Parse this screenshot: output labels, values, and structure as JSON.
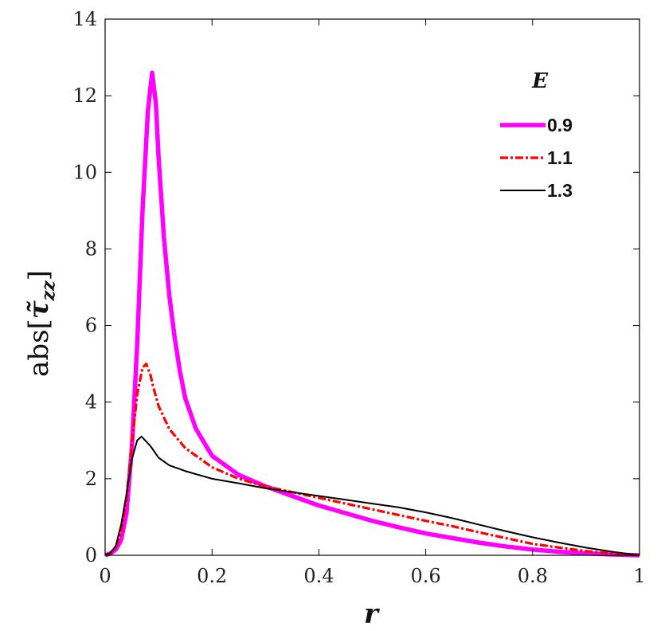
{
  "chart_data": {
    "type": "line",
    "xlabel": "r",
    "ylabel": "abs[τ̃zz]",
    "ylabel_parts": {
      "prefix": "abs[",
      "symbol": "τ̃",
      "subscript": "zz",
      "suffix": "]"
    },
    "xlim": [
      0,
      1
    ],
    "ylim": [
      0,
      14
    ],
    "x_ticks": [
      0,
      0.2,
      0.4,
      0.6,
      0.8,
      1
    ],
    "x_tick_labels": [
      "0",
      "0.2",
      "0.4",
      "0.6",
      "0.8",
      "1"
    ],
    "y_ticks": [
      0,
      2,
      4,
      6,
      8,
      10,
      12,
      14
    ],
    "y_tick_labels": [
      "0",
      "2",
      "4",
      "6",
      "8",
      "10",
      "12",
      "14"
    ],
    "grid": false,
    "legend": {
      "title": "E",
      "placement": "top-right"
    },
    "series": [
      {
        "name": "0.9",
        "color": "#ff00ff",
        "style": "solid-thick",
        "points": [
          [
            0,
            0
          ],
          [
            0.01,
            0.05
          ],
          [
            0.02,
            0.15
          ],
          [
            0.03,
            0.4
          ],
          [
            0.04,
            1.1
          ],
          [
            0.05,
            2.8
          ],
          [
            0.06,
            5.5
          ],
          [
            0.07,
            9.0
          ],
          [
            0.08,
            11.6
          ],
          [
            0.088,
            12.6
          ],
          [
            0.095,
            11.8
          ],
          [
            0.1,
            10.4
          ],
          [
            0.11,
            8.3
          ],
          [
            0.12,
            6.8
          ],
          [
            0.13,
            5.7
          ],
          [
            0.14,
            4.8
          ],
          [
            0.15,
            4.1
          ],
          [
            0.17,
            3.3
          ],
          [
            0.2,
            2.6
          ],
          [
            0.25,
            2.1
          ],
          [
            0.3,
            1.8
          ],
          [
            0.35,
            1.55
          ],
          [
            0.4,
            1.3
          ],
          [
            0.45,
            1.1
          ],
          [
            0.5,
            0.9
          ],
          [
            0.55,
            0.73
          ],
          [
            0.6,
            0.57
          ],
          [
            0.65,
            0.45
          ],
          [
            0.7,
            0.33
          ],
          [
            0.75,
            0.23
          ],
          [
            0.8,
            0.15
          ],
          [
            0.85,
            0.09
          ],
          [
            0.9,
            0.05
          ],
          [
            0.95,
            0.02
          ],
          [
            1,
            0
          ]
        ]
      },
      {
        "name": "1.1",
        "color": "#ff0000",
        "style": "dash-dot",
        "points": [
          [
            0,
            0
          ],
          [
            0.01,
            0.05
          ],
          [
            0.02,
            0.2
          ],
          [
            0.03,
            0.6
          ],
          [
            0.04,
            1.5
          ],
          [
            0.05,
            2.9
          ],
          [
            0.06,
            4.2
          ],
          [
            0.07,
            4.9
          ],
          [
            0.077,
            5.0
          ],
          [
            0.085,
            4.7
          ],
          [
            0.09,
            4.4
          ],
          [
            0.1,
            3.9
          ],
          [
            0.12,
            3.3
          ],
          [
            0.15,
            2.8
          ],
          [
            0.2,
            2.3
          ],
          [
            0.25,
            2.0
          ],
          [
            0.3,
            1.8
          ],
          [
            0.35,
            1.65
          ],
          [
            0.4,
            1.5
          ],
          [
            0.45,
            1.35
          ],
          [
            0.5,
            1.2
          ],
          [
            0.55,
            1.05
          ],
          [
            0.6,
            0.9
          ],
          [
            0.65,
            0.76
          ],
          [
            0.7,
            0.6
          ],
          [
            0.75,
            0.45
          ],
          [
            0.8,
            0.3
          ],
          [
            0.85,
            0.2
          ],
          [
            0.9,
            0.11
          ],
          [
            0.95,
            0.05
          ],
          [
            1,
            0
          ]
        ]
      },
      {
        "name": "1.3",
        "color": "#000000",
        "style": "solid-thin",
        "points": [
          [
            0,
            0
          ],
          [
            0.01,
            0.06
          ],
          [
            0.02,
            0.25
          ],
          [
            0.03,
            0.8
          ],
          [
            0.04,
            1.6
          ],
          [
            0.05,
            2.5
          ],
          [
            0.06,
            3.0
          ],
          [
            0.068,
            3.1
          ],
          [
            0.075,
            3.0
          ],
          [
            0.085,
            2.85
          ],
          [
            0.1,
            2.55
          ],
          [
            0.12,
            2.35
          ],
          [
            0.15,
            2.2
          ],
          [
            0.2,
            2.0
          ],
          [
            0.25,
            1.88
          ],
          [
            0.3,
            1.75
          ],
          [
            0.35,
            1.65
          ],
          [
            0.4,
            1.55
          ],
          [
            0.45,
            1.45
          ],
          [
            0.5,
            1.35
          ],
          [
            0.55,
            1.25
          ],
          [
            0.6,
            1.12
          ],
          [
            0.65,
            0.97
          ],
          [
            0.7,
            0.8
          ],
          [
            0.75,
            0.63
          ],
          [
            0.8,
            0.47
          ],
          [
            0.85,
            0.33
          ],
          [
            0.9,
            0.2
          ],
          [
            0.95,
            0.09
          ],
          [
            1,
            0
          ]
        ]
      }
    ]
  }
}
